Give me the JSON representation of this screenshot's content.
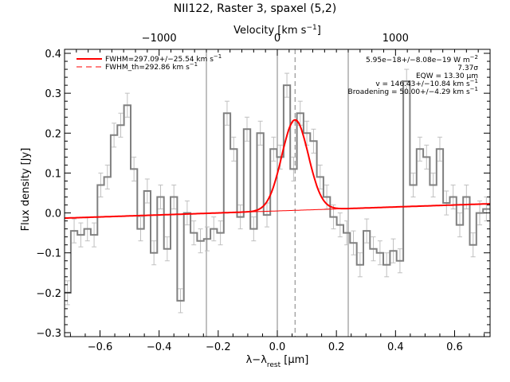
{
  "chart_data": {
    "type": "line",
    "title": "NII122, Raster 3, spaxel (5,2)",
    "xlabel_main": "λ−λ",
    "xlabel_sub": "rest",
    "xlabel_unit": " [μm]",
    "top_xlabel": "Velocity [km s",
    "top_xlabel_sup": "−1",
    "top_xlabel_end": "]",
    "ylabel": "Flux density [Jy]",
    "xlim": [
      -0.72,
      0.72
    ],
    "ylim": [
      -0.31,
      0.41
    ],
    "x_ticks": [
      -0.6,
      -0.4,
      -0.2,
      0.0,
      0.2,
      0.4,
      0.6
    ],
    "x_tick_labels": [
      "−0.6",
      "−0.4",
      "−0.2",
      "0.0",
      "0.2",
      "0.4",
      "0.6"
    ],
    "y_ticks": [
      -0.3,
      -0.2,
      -0.1,
      0.0,
      0.1,
      0.2,
      0.3,
      0.4
    ],
    "y_tick_labels": [
      "−0.3",
      "−0.2",
      "−0.1",
      "0.0",
      "0.1",
      "0.2",
      "0.3",
      "0.4"
    ],
    "top_ticks_velocity": [
      -1000,
      0,
      1000
    ],
    "top_tick_labels": [
      "−1000",
      "0",
      "1000"
    ],
    "velocity_zero_wavelength_offset": 0.0,
    "microns_per_1000_kms": 0.4,
    "vertical_lines": [
      -0.24,
      0.0,
      0.24
    ],
    "dashed_line_x": 0.06,
    "legend": [
      {
        "label": "FWHM=297.09+/−25.54 km s",
        "sup": "−1",
        "style": "solid"
      },
      {
        "label": "FWHM_th=292.86 km s",
        "sup": "−1",
        "style": "dashed"
      }
    ],
    "info_lines": [
      {
        "text": "5.95e−18+/−8.08e−19 W m",
        "sup": "−2"
      },
      {
        "text": "7.37σ",
        "sup": ""
      },
      {
        "text": "EQW = 13.30 μm",
        "sup": ""
      },
      {
        "text": "v = 146.43+/−10.84 km s",
        "sup": "−1"
      },
      {
        "text": "Broadening = 50.00+/−4.29 km s",
        "sup": "−1"
      }
    ],
    "fit": {
      "baseline_intercept": 0.005,
      "baseline_slope": 0.025,
      "gaussian_amplitude": 0.227,
      "gaussian_center": 0.06,
      "gaussian_sigma": 0.045
    },
    "series": [
      {
        "bin_width": 0.0225,
        "x": [
          -0.71,
          -0.6875,
          -0.665,
          -0.6425,
          -0.62,
          -0.5975,
          -0.575,
          -0.5525,
          -0.53,
          -0.5075,
          -0.485,
          -0.4625,
          -0.44,
          -0.4175,
          -0.395,
          -0.3725,
          -0.35,
          -0.3275,
          -0.305,
          -0.2825,
          -0.26,
          -0.2375,
          -0.215,
          -0.1925,
          -0.17,
          -0.1475,
          -0.125,
          -0.1025,
          -0.08,
          -0.0575,
          -0.035,
          -0.0125,
          0.01,
          0.0325,
          0.055,
          0.0775,
          0.1,
          0.1225,
          0.145,
          0.1675,
          0.19,
          0.2125,
          0.235,
          0.2575,
          0.28,
          0.3025,
          0.325,
          0.3475,
          0.37,
          0.3925,
          0.415,
          0.4375,
          0.46,
          0.4825,
          0.505,
          0.5275,
          0.55,
          0.5725,
          0.595,
          0.6175,
          0.64,
          0.6625,
          0.685,
          0.7075
        ],
        "y": [
          -0.2,
          -0.045,
          -0.055,
          -0.04,
          -0.055,
          0.07,
          0.09,
          0.195,
          0.22,
          0.27,
          0.11,
          -0.04,
          0.055,
          -0.1,
          0.04,
          -0.09,
          0.04,
          -0.22,
          0.0,
          -0.05,
          -0.07,
          -0.065,
          -0.04,
          -0.05,
          0.25,
          0.16,
          -0.01,
          0.21,
          -0.04,
          0.2,
          -0.005,
          0.16,
          0.14,
          0.32,
          0.11,
          0.25,
          0.2,
          0.18,
          0.09,
          0.04,
          -0.01,
          -0.03,
          -0.05,
          -0.075,
          -0.13,
          -0.045,
          -0.09,
          -0.1,
          -0.13,
          -0.095,
          -0.12,
          0.33,
          0.07,
          0.16,
          0.14,
          0.07,
          0.16,
          0.025,
          0.04,
          -0.03,
          0.04,
          -0.08,
          0.0,
          0.01
        ],
        "err": 0.03
      }
    ],
    "colors": {
      "data": "#808080",
      "errorbar": "#c0c0c0",
      "fit": "#ff0000",
      "axis": "#000000",
      "vline": "#808080"
    }
  }
}
